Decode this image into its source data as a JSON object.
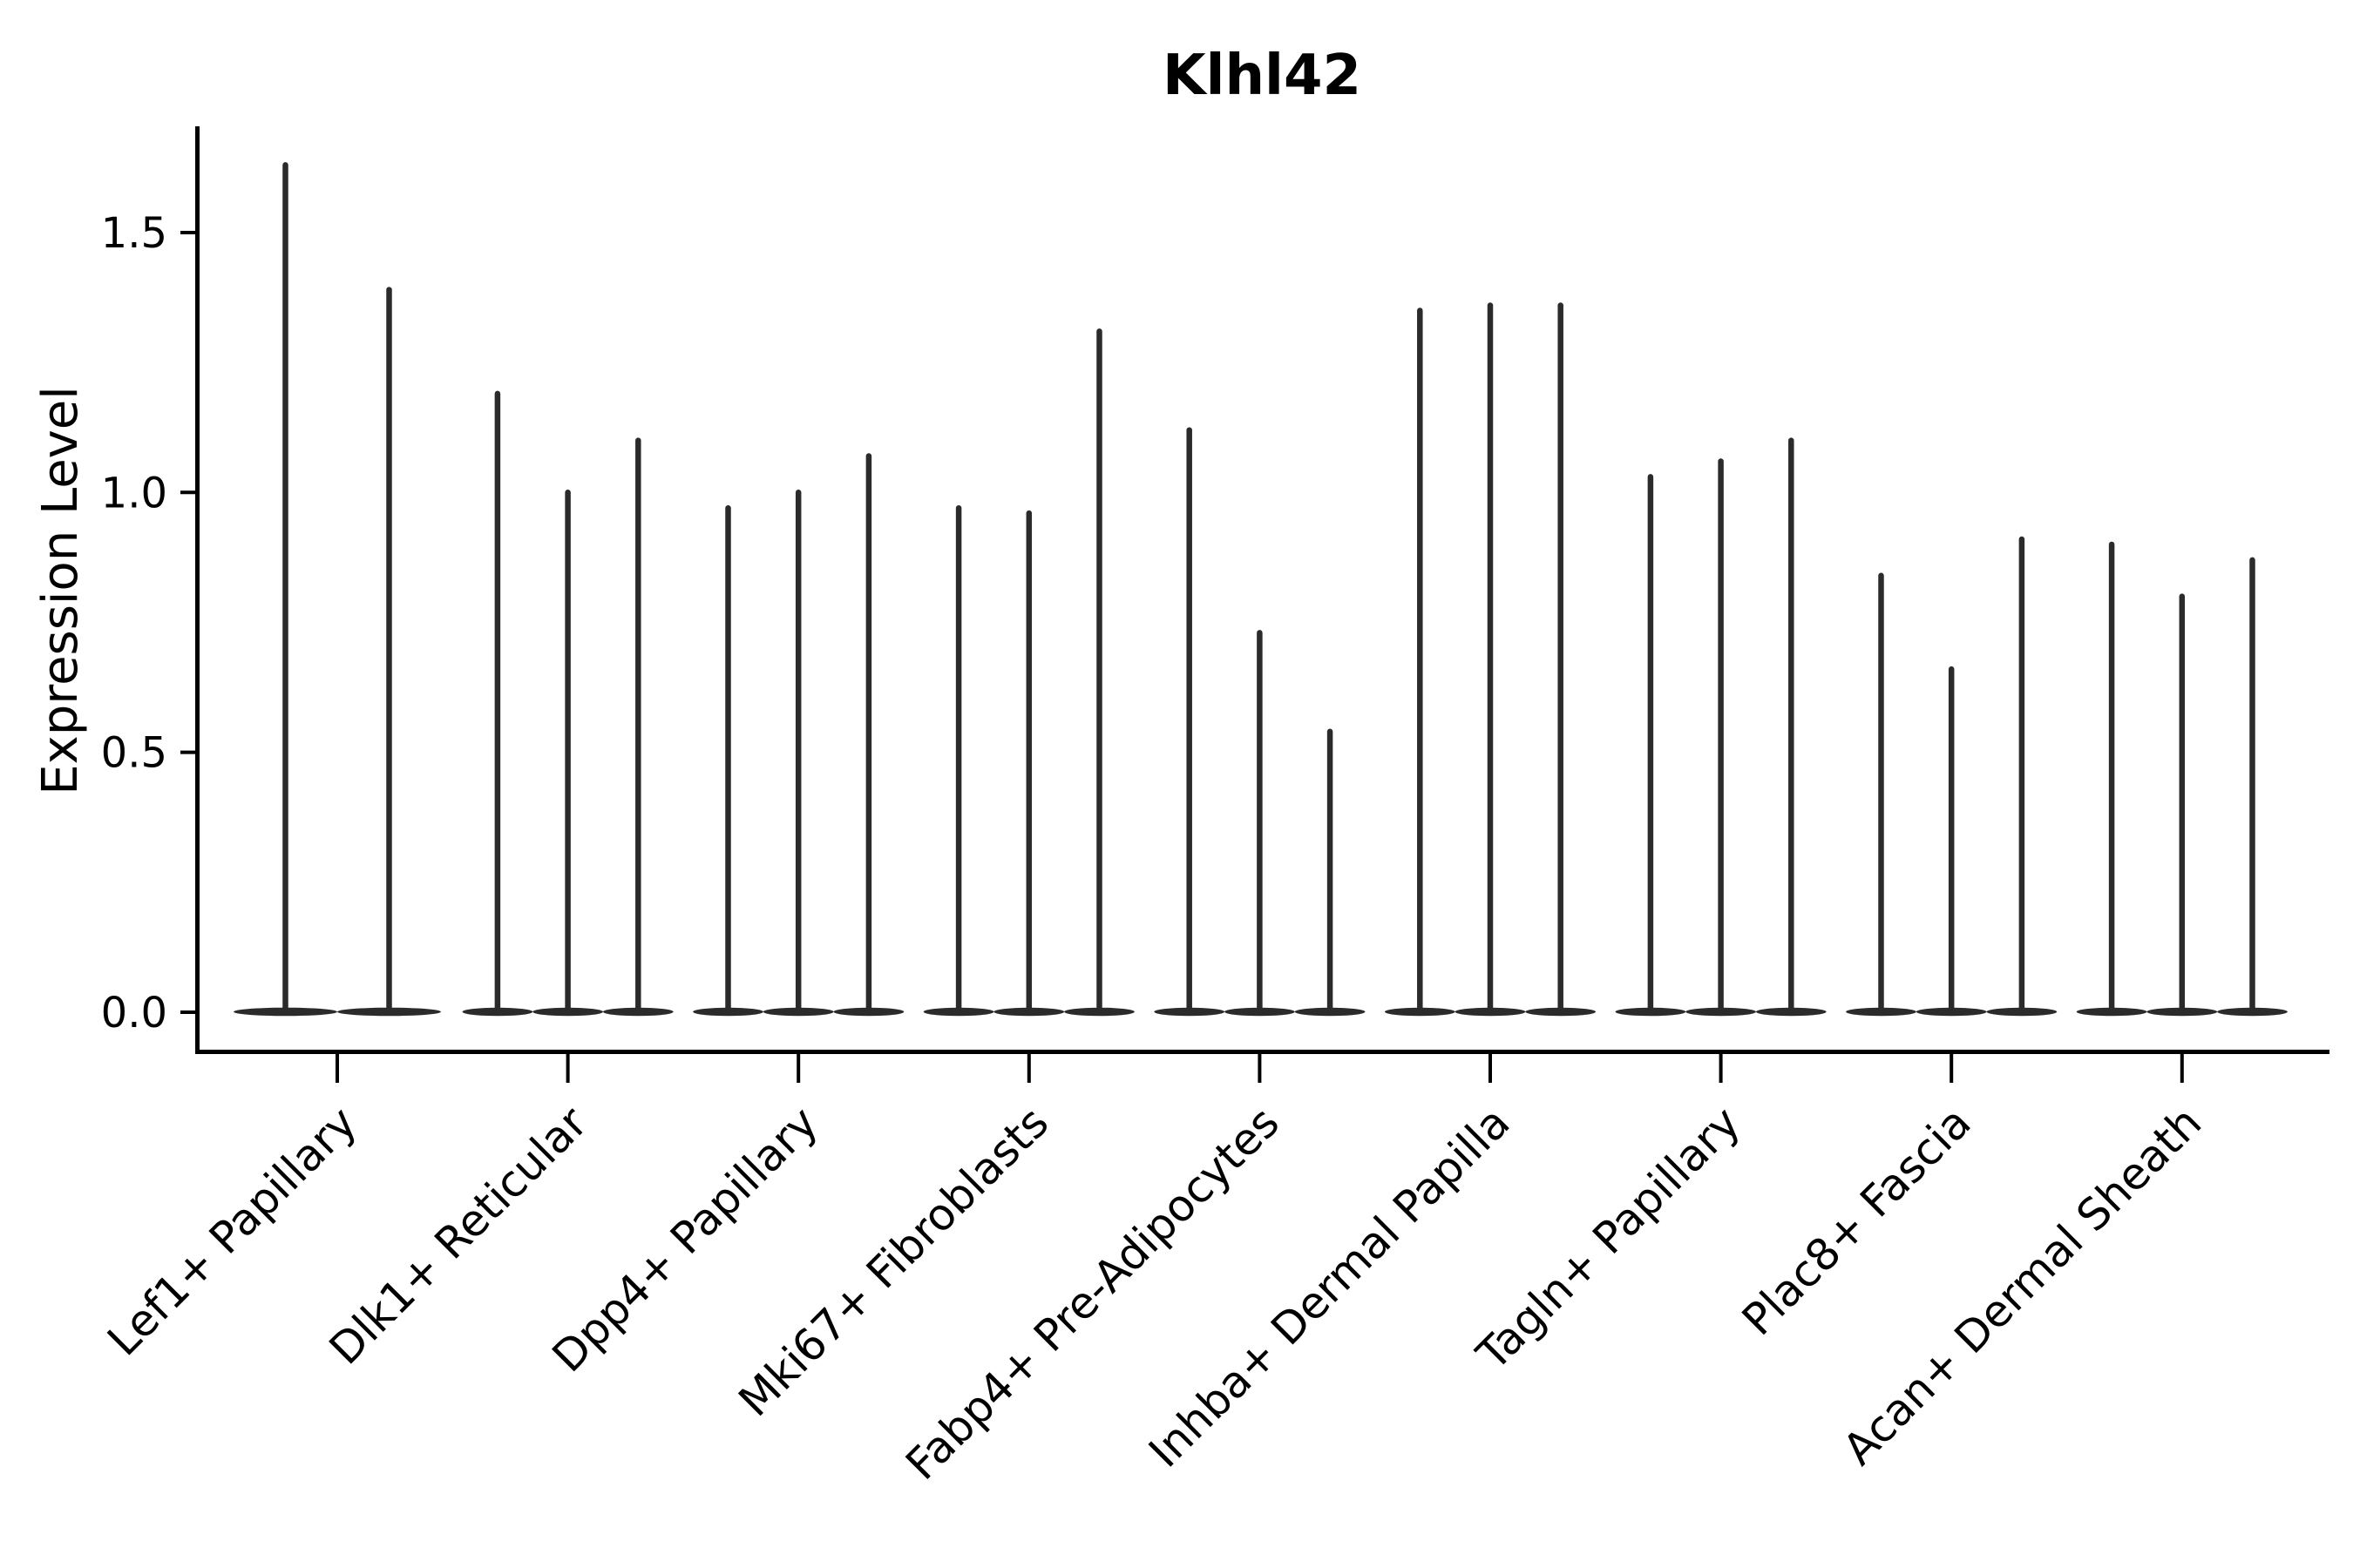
{
  "title": "Klhl42",
  "ylabel": "Expression Level",
  "chart_data": {
    "type": "violin",
    "title": "Klhl42",
    "xlabel": "",
    "ylabel": "Expression Level",
    "ylim": [
      -0.08,
      1.71
    ],
    "yticks": [
      0.0,
      0.5,
      1.0,
      1.5
    ],
    "ytick_labels": [
      "0.0",
      "0.5",
      "1.0",
      "1.5"
    ],
    "grid": "off",
    "legend": "none",
    "ink_color": "#2b2b2b",
    "background_color": "#ffffff",
    "categories": [
      "Lef1+ Papillary",
      "Dlk1+ Reticular",
      "Dpp4+ Papillary",
      "Mki67+ Fibroblasts",
      "Fabp4+ Pre-Adipocytes",
      "Inhba+ Dermal Papilla",
      "Tagln+ Papillary",
      "Plac8+ Fascia",
      "Acan+ Dermal Sheath"
    ],
    "series": [
      {
        "category": "Lef1+ Papillary",
        "violin_maxima": [
          1.63,
          1.39
        ]
      },
      {
        "category": "Dlk1+ Reticular",
        "violin_maxima": [
          1.19,
          1.0,
          1.1
        ]
      },
      {
        "category": "Dpp4+ Papillary",
        "violin_maxima": [
          0.97,
          1.0,
          1.07
        ]
      },
      {
        "category": "Mki67+ Fibroblasts",
        "violin_maxima": [
          0.97,
          0.96,
          1.31
        ]
      },
      {
        "category": "Fabp4+ Pre-Adipocytes",
        "violin_maxima": [
          1.12,
          0.73,
          0.54
        ]
      },
      {
        "category": "Inhba+ Dermal Papilla",
        "violin_maxima": [
          1.35,
          1.36,
          1.36
        ]
      },
      {
        "category": "Tagln+ Papillary",
        "violin_maxima": [
          1.03,
          1.06,
          1.1
        ]
      },
      {
        "category": "Plac8+ Fascia",
        "violin_maxima": [
          0.84,
          0.66,
          0.91
        ]
      },
      {
        "category": "Acan+ Dermal Sheath",
        "violin_maxima": [
          0.9,
          0.8,
          0.87
        ]
      }
    ],
    "violin_baseline_value": 0.0,
    "violin_shape_note": "each violin is a flat density bulge at 0 with a thin spike up to its maximum"
  }
}
